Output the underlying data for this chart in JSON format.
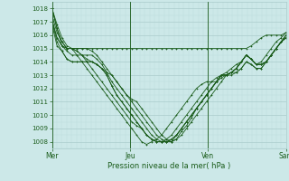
{
  "background_color": "#cce8e8",
  "grid_color_major": "#aacccc",
  "grid_color_minor": "#bbdddd",
  "line_color": "#1a5c1a",
  "marker_color": "#1a5c1a",
  "xlabel": "Pression niveau de la mer( hPa )",
  "xlabel_color": "#1a5c1a",
  "xtick_labels": [
    "Mer",
    "Jeu",
    "Ven",
    "Sam"
  ],
  "xtick_positions": [
    0,
    48,
    96,
    144
  ],
  "ylim": [
    1007.5,
    1018.5
  ],
  "yticks": [
    1008,
    1009,
    1010,
    1011,
    1012,
    1013,
    1014,
    1015,
    1016,
    1017,
    1018
  ],
  "total_hours": 144,
  "figsize": [
    3.2,
    2.0
  ],
  "dpi": 100,
  "series": [
    [
      1018.0,
      1016.5,
      1015.2,
      1015.0,
      1015.0,
      1015.0,
      1015.0,
      1015.0,
      1015.0,
      1015.0,
      1015.0,
      1015.0,
      1015.0,
      1015.0,
      1015.0,
      1015.0,
      1015.0,
      1015.0,
      1015.0,
      1015.0,
      1015.0,
      1015.0,
      1015.0,
      1015.0,
      1015.0,
      1015.0,
      1015.0,
      1015.0,
      1015.0,
      1015.0,
      1015.0,
      1015.0,
      1015.0,
      1015.0,
      1015.0,
      1015.0,
      1015.0,
      1015.0,
      1015.0,
      1015.0,
      1015.2,
      1015.5,
      1015.8,
      1016.0,
      1016.0,
      1016.0,
      1016.0,
      1016.2
    ],
    [
      1018.0,
      1016.5,
      1015.5,
      1015.0,
      1015.0,
      1014.8,
      1014.5,
      1014.2,
      1014.0,
      1013.8,
      1013.5,
      1013.2,
      1013.0,
      1012.5,
      1012.0,
      1011.5,
      1011.0,
      1010.5,
      1010.0,
      1009.5,
      1009.0,
      1008.5,
      1008.2,
      1008.0,
      1008.0,
      1008.2,
      1008.5,
      1009.0,
      1009.5,
      1010.0,
      1010.5,
      1011.0,
      1011.5,
      1012.0,
      1012.5,
      1013.0,
      1013.2,
      1013.2,
      1013.5,
      1014.0,
      1013.8,
      1013.5,
      1013.5,
      1014.0,
      1014.5,
      1015.0,
      1015.5,
      1016.0
    ],
    [
      1018.0,
      1016.8,
      1015.8,
      1015.2,
      1015.0,
      1014.5,
      1014.0,
      1013.5,
      1013.0,
      1012.5,
      1012.0,
      1011.5,
      1011.0,
      1010.5,
      1010.0,
      1009.5,
      1009.0,
      1008.5,
      1008.0,
      1007.8,
      1008.0,
      1008.2,
      1008.5,
      1009.0,
      1009.5,
      1010.0,
      1010.5,
      1011.0,
      1011.5,
      1012.0,
      1012.3,
      1012.5,
      1012.5,
      1012.5,
      1012.8,
      1013.0,
      1013.0,
      1013.2,
      1013.5,
      1014.0,
      1013.8,
      1013.5,
      1013.5,
      1014.0,
      1014.5,
      1015.0,
      1015.5,
      1016.0
    ],
    [
      1017.5,
      1016.2,
      1015.5,
      1015.0,
      1015.0,
      1014.8,
      1014.5,
      1014.0,
      1013.5,
      1013.0,
      1012.5,
      1012.0,
      1011.5,
      1011.0,
      1010.5,
      1010.0,
      1009.5,
      1009.2,
      1009.0,
      1008.5,
      1008.2,
      1008.0,
      1008.0,
      1008.2,
      1008.5,
      1009.0,
      1009.5,
      1010.0,
      1010.5,
      1011.0,
      1011.5,
      1012.0,
      1012.5,
      1012.8,
      1013.0,
      1013.0,
      1013.2,
      1013.5,
      1014.0,
      1014.5,
      1014.2,
      1013.8,
      1013.8,
      1014.0,
      1014.5,
      1015.0,
      1015.5,
      1016.0
    ],
    [
      1017.2,
      1015.8,
      1015.2,
      1015.0,
      1015.0,
      1015.0,
      1015.0,
      1015.0,
      1014.8,
      1014.5,
      1014.0,
      1013.5,
      1013.0,
      1012.5,
      1012.0,
      1011.5,
      1011.2,
      1011.0,
      1010.5,
      1010.0,
      1009.5,
      1009.0,
      1008.5,
      1008.2,
      1008.0,
      1008.2,
      1008.8,
      1009.2,
      1009.8,
      1010.5,
      1011.0,
      1011.5,
      1012.0,
      1012.5,
      1013.0,
      1013.0,
      1013.2,
      1013.5,
      1014.0,
      1014.5,
      1014.2,
      1013.8,
      1013.8,
      1014.0,
      1014.5,
      1015.0,
      1015.5,
      1015.8
    ],
    [
      1017.0,
      1015.8,
      1015.2,
      1014.8,
      1014.5,
      1014.5,
      1014.5,
      1014.5,
      1014.5,
      1014.2,
      1013.8,
      1013.2,
      1012.5,
      1012.0,
      1011.5,
      1011.0,
      1010.5,
      1010.0,
      1009.5,
      1009.0,
      1008.5,
      1008.2,
      1008.0,
      1008.0,
      1008.0,
      1008.5,
      1009.0,
      1009.5,
      1010.0,
      1010.5,
      1011.0,
      1011.5,
      1012.0,
      1012.5,
      1013.0,
      1013.0,
      1013.2,
      1013.5,
      1014.0,
      1014.5,
      1014.2,
      1013.8,
      1013.8,
      1014.0,
      1014.5,
      1015.0,
      1015.5,
      1015.8
    ],
    [
      1017.0,
      1015.5,
      1014.8,
      1014.2,
      1014.0,
      1014.0,
      1014.0,
      1014.0,
      1014.0,
      1013.8,
      1013.5,
      1013.0,
      1012.2,
      1011.5,
      1011.0,
      1010.5,
      1010.0,
      1009.5,
      1009.0,
      1008.5,
      1008.2,
      1008.0,
      1008.0,
      1008.0,
      1008.2,
      1008.5,
      1009.0,
      1009.5,
      1010.0,
      1010.5,
      1011.0,
      1011.5,
      1012.0,
      1012.5,
      1013.0,
      1013.0,
      1013.2,
      1013.5,
      1014.0,
      1014.5,
      1014.2,
      1013.8,
      1013.8,
      1014.0,
      1014.5,
      1015.0,
      1015.5,
      1015.8
    ],
    [
      1016.8,
      1015.2,
      1014.8,
      1014.2,
      1014.0,
      1014.0,
      1014.0,
      1014.0,
      1014.0,
      1013.8,
      1013.5,
      1013.0,
      1012.2,
      1011.5,
      1011.0,
      1010.5,
      1010.0,
      1009.5,
      1009.0,
      1008.5,
      1008.2,
      1008.0,
      1008.0,
      1008.0,
      1008.2,
      1008.5,
      1009.0,
      1009.5,
      1010.0,
      1010.5,
      1011.0,
      1011.5,
      1012.0,
      1012.5,
      1013.0,
      1013.2,
      1013.5,
      1013.8,
      1014.0,
      1014.5,
      1014.2,
      1013.8,
      1014.0,
      1014.5,
      1015.0,
      1015.5,
      1015.8,
      1016.2
    ]
  ]
}
